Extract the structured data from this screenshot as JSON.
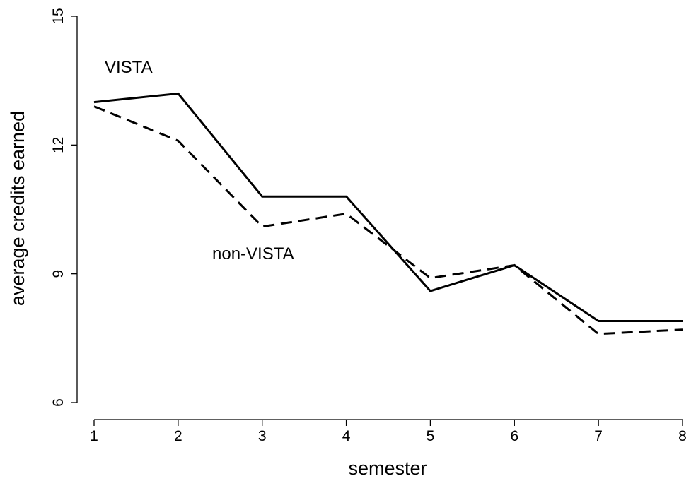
{
  "chart_data": {
    "type": "line",
    "title": "",
    "xlabel": "semester",
    "ylabel": "average credits earned",
    "x": [
      1,
      2,
      3,
      4,
      5,
      6,
      7,
      8
    ],
    "xlim": [
      1,
      8
    ],
    "ylim": [
      6,
      15
    ],
    "xticks": [
      1,
      2,
      3,
      4,
      5,
      6,
      7,
      8
    ],
    "yticks": [
      6,
      9,
      12,
      15
    ],
    "grid": false,
    "legend": "none",
    "series": [
      {
        "name": "VISTA",
        "style": "solid",
        "color": "#000000",
        "values": [
          13.0,
          13.2,
          10.8,
          10.8,
          8.6,
          9.2,
          7.9,
          7.9
        ]
      },
      {
        "name": "non-VISTA",
        "style": "dashed",
        "color": "#000000",
        "values": [
          12.9,
          12.1,
          10.1,
          10.4,
          8.9,
          9.2,
          7.6,
          7.7
        ]
      }
    ]
  }
}
